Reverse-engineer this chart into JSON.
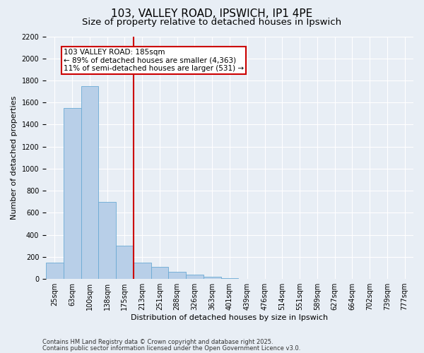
{
  "title": "103, VALLEY ROAD, IPSWICH, IP1 4PE",
  "subtitle": "Size of property relative to detached houses in Ipswich",
  "xlabel": "Distribution of detached houses by size in Ipswich",
  "ylabel": "Number of detached properties",
  "categories": [
    "25sqm",
    "63sqm",
    "100sqm",
    "138sqm",
    "175sqm",
    "213sqm",
    "251sqm",
    "288sqm",
    "326sqm",
    "363sqm",
    "401sqm",
    "439sqm",
    "476sqm",
    "514sqm",
    "551sqm",
    "589sqm",
    "627sqm",
    "664sqm",
    "702sqm",
    "739sqm",
    "777sqm"
  ],
  "values": [
    150,
    1550,
    1750,
    700,
    300,
    145,
    110,
    65,
    40,
    20,
    8,
    2,
    1,
    0,
    0,
    0,
    0,
    0,
    0,
    0,
    0
  ],
  "bar_color": "#b8cfe8",
  "bar_edgecolor": "#6aaad4",
  "vline_color": "#cc0000",
  "vline_x_offset": 4.5,
  "annotation_text": "103 VALLEY ROAD: 185sqm\n← 89% of detached houses are smaller (4,363)\n11% of semi-detached houses are larger (531) →",
  "annotation_box_facecolor": "#ffffff",
  "annotation_box_edgecolor": "#cc0000",
  "ylim": [
    0,
    2200
  ],
  "yticks": [
    0,
    200,
    400,
    600,
    800,
    1000,
    1200,
    1400,
    1600,
    1800,
    2000,
    2200
  ],
  "footer1": "Contains HM Land Registry data © Crown copyright and database right 2025.",
  "footer2": "Contains public sector information licensed under the Open Government Licence v3.0.",
  "background_color": "#e8eef5",
  "plot_background": "#e8eef5",
  "title_fontsize": 11,
  "subtitle_fontsize": 9.5,
  "tick_fontsize": 7,
  "ylabel_fontsize": 8,
  "xlabel_fontsize": 8,
  "footer_fontsize": 6,
  "annotation_fontsize": 7.5
}
